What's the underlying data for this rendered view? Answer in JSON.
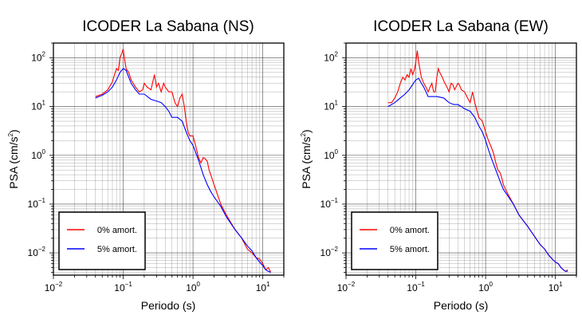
{
  "colors": {
    "undamped": "#ff0000",
    "damped": "#0000ff",
    "grid": "#000000",
    "frame": "#000000"
  },
  "chart_data": [
    {
      "type": "line",
      "title": "ICODER La Sabana (NS)",
      "xlabel": "Periodo (s)",
      "ylabel_main": "PSA (cm/s",
      "ylabel_sup": "2",
      "ylabel_tail": ")",
      "xscale": "log",
      "yscale": "log",
      "xlim": [
        0.01,
        20
      ],
      "ylim": [
        0.0035,
        200
      ],
      "grid": true,
      "legend_position": "bottom-left",
      "xticks": [
        {
          "v": 0.01,
          "base": "10",
          "exp": "−2"
        },
        {
          "v": 0.1,
          "base": "10",
          "exp": "−1"
        },
        {
          "v": 1,
          "base": "10",
          "exp": "0"
        },
        {
          "v": 10,
          "base": "10",
          "exp": "1"
        }
      ],
      "yticks": [
        {
          "v": 100,
          "base": "10",
          "exp": "2"
        },
        {
          "v": 10,
          "base": "10",
          "exp": "1"
        },
        {
          "v": 1,
          "base": "10",
          "exp": "0"
        },
        {
          "v": 0.1,
          "base": "10",
          "exp": "−1"
        },
        {
          "v": 0.01,
          "base": "10",
          "exp": "−2"
        }
      ],
      "series": [
        {
          "name": "0% amort.",
          "color": "#ff0000",
          "points": [
            [
              0.04,
              16
            ],
            [
              0.05,
              18
            ],
            [
              0.06,
              22
            ],
            [
              0.07,
              32
            ],
            [
              0.075,
              45
            ],
            [
              0.08,
              60
            ],
            [
              0.085,
              55
            ],
            [
              0.09,
              100
            ],
            [
              0.095,
              120
            ],
            [
              0.1,
              150
            ],
            [
              0.105,
              90
            ],
            [
              0.11,
              60
            ],
            [
              0.12,
              50
            ],
            [
              0.13,
              35
            ],
            [
              0.15,
              25
            ],
            [
              0.17,
              20
            ],
            [
              0.19,
              22
            ],
            [
              0.2,
              30
            ],
            [
              0.22,
              25
            ],
            [
              0.25,
              22
            ],
            [
              0.28,
              45
            ],
            [
              0.3,
              25
            ],
            [
              0.32,
              30
            ],
            [
              0.35,
              20
            ],
            [
              0.38,
              30
            ],
            [
              0.4,
              25
            ],
            [
              0.45,
              20
            ],
            [
              0.5,
              20
            ],
            [
              0.55,
              12
            ],
            [
              0.6,
              10
            ],
            [
              0.65,
              15
            ],
            [
              0.7,
              18
            ],
            [
              0.75,
              10
            ],
            [
              0.8,
              5
            ],
            [
              0.85,
              3
            ],
            [
              0.9,
              2.5
            ],
            [
              1,
              2.5
            ],
            [
              1.1,
              1.5
            ],
            [
              1.2,
              0.9
            ],
            [
              1.3,
              0.7
            ],
            [
              1.4,
              0.9
            ],
            [
              1.5,
              0.85
            ],
            [
              1.6,
              0.75
            ],
            [
              1.7,
              0.5
            ],
            [
              1.8,
              0.4
            ],
            [
              2,
              0.25
            ],
            [
              2.5,
              0.1
            ],
            [
              3,
              0.06
            ],
            [
              4,
              0.03
            ],
            [
              5,
              0.02
            ],
            [
              6,
              0.012
            ],
            [
              7,
              0.01
            ],
            [
              8,
              0.008
            ],
            [
              9,
              0.0075
            ],
            [
              10,
              0.006
            ],
            [
              11,
              0.0045
            ],
            [
              12,
              0.005
            ],
            [
              13,
              0.004
            ]
          ]
        },
        {
          "name": "5% amort.",
          "color": "#0000ff",
          "points": [
            [
              0.04,
              15
            ],
            [
              0.05,
              17
            ],
            [
              0.06,
              20
            ],
            [
              0.07,
              25
            ],
            [
              0.08,
              35
            ],
            [
              0.09,
              50
            ],
            [
              0.1,
              60
            ],
            [
              0.11,
              55
            ],
            [
              0.12,
              40
            ],
            [
              0.13,
              30
            ],
            [
              0.15,
              22
            ],
            [
              0.17,
              18
            ],
            [
              0.2,
              18
            ],
            [
              0.25,
              14
            ],
            [
              0.3,
              13
            ],
            [
              0.35,
              12
            ],
            [
              0.4,
              10
            ],
            [
              0.45,
              8
            ],
            [
              0.5,
              6
            ],
            [
              0.6,
              6
            ],
            [
              0.7,
              5
            ],
            [
              0.8,
              3
            ],
            [
              0.9,
              2
            ],
            [
              1,
              1.6
            ],
            [
              1.2,
              0.8
            ],
            [
              1.4,
              0.4
            ],
            [
              1.6,
              0.25
            ],
            [
              1.8,
              0.18
            ],
            [
              2,
              0.14
            ],
            [
              2.5,
              0.09
            ],
            [
              3,
              0.055
            ],
            [
              4,
              0.03
            ],
            [
              5,
              0.02
            ],
            [
              6,
              0.014
            ],
            [
              7,
              0.011
            ],
            [
              8,
              0.008
            ],
            [
              9,
              0.0065
            ],
            [
              10,
              0.0055
            ],
            [
              11,
              0.0045
            ],
            [
              12,
              0.0042
            ],
            [
              13,
              0.004
            ]
          ]
        }
      ]
    },
    {
      "type": "line",
      "title": "ICODER La Sabana (EW)",
      "xlabel": "Periodo (s)",
      "ylabel_main": "PSA (cm/s",
      "ylabel_sup": "2",
      "ylabel_tail": ")",
      "xscale": "log",
      "yscale": "log",
      "xlim": [
        0.01,
        20
      ],
      "ylim": [
        0.0035,
        200
      ],
      "grid": true,
      "legend_position": "bottom-left",
      "xticks": [
        {
          "v": 0.01,
          "base": "10",
          "exp": "−2"
        },
        {
          "v": 0.1,
          "base": "10",
          "exp": "−1"
        },
        {
          "v": 1,
          "base": "10",
          "exp": "0"
        },
        {
          "v": 10,
          "base": "10",
          "exp": "1"
        }
      ],
      "yticks": [
        {
          "v": 100,
          "base": "10",
          "exp": "2"
        },
        {
          "v": 10,
          "base": "10",
          "exp": "1"
        },
        {
          "v": 1,
          "base": "10",
          "exp": "0"
        },
        {
          "v": 0.1,
          "base": "10",
          "exp": "−1"
        },
        {
          "v": 0.01,
          "base": "10",
          "exp": "−2"
        }
      ],
      "series": [
        {
          "name": "0% amort.",
          "color": "#ff0000",
          "points": [
            [
              0.04,
              12
            ],
            [
              0.045,
              12
            ],
            [
              0.05,
              15
            ],
            [
              0.055,
              20
            ],
            [
              0.06,
              30
            ],
            [
              0.065,
              40
            ],
            [
              0.07,
              35
            ],
            [
              0.075,
              45
            ],
            [
              0.08,
              40
            ],
            [
              0.085,
              60
            ],
            [
              0.09,
              45
            ],
            [
              0.095,
              55
            ],
            [
              0.1,
              80
            ],
            [
              0.105,
              140
            ],
            [
              0.11,
              80
            ],
            [
              0.12,
              40
            ],
            [
              0.13,
              30
            ],
            [
              0.14,
              25
            ],
            [
              0.15,
              20
            ],
            [
              0.16,
              25
            ],
            [
              0.17,
              30
            ],
            [
              0.18,
              20
            ],
            [
              0.19,
              20
            ],
            [
              0.2,
              40
            ],
            [
              0.21,
              60
            ],
            [
              0.22,
              50
            ],
            [
              0.24,
              40
            ],
            [
              0.26,
              30
            ],
            [
              0.28,
              25
            ],
            [
              0.3,
              20
            ],
            [
              0.32,
              30
            ],
            [
              0.34,
              28
            ],
            [
              0.36,
              22
            ],
            [
              0.4,
              30
            ],
            [
              0.42,
              28
            ],
            [
              0.45,
              22
            ],
            [
              0.5,
              20
            ],
            [
              0.55,
              15
            ],
            [
              0.6,
              12
            ],
            [
              0.65,
              20
            ],
            [
              0.7,
              12
            ],
            [
              0.8,
              6
            ],
            [
              0.9,
              5
            ],
            [
              1,
              3
            ],
            [
              1.1,
              2
            ],
            [
              1.2,
              1.5
            ],
            [
              1.3,
              1.1
            ],
            [
              1.4,
              0.7
            ],
            [
              1.5,
              0.5
            ],
            [
              1.6,
              0.45
            ],
            [
              1.7,
              0.35
            ],
            [
              1.8,
              0.25
            ],
            [
              2,
              0.18
            ],
            [
              2.5,
              0.1
            ],
            [
              3,
              0.06
            ],
            [
              4,
              0.035
            ],
            [
              5,
              0.022
            ],
            [
              6,
              0.015
            ],
            [
              7,
              0.012
            ],
            [
              8,
              0.009
            ],
            [
              9,
              0.0075
            ],
            [
              10,
              0.0065
            ],
            [
              11,
              0.006
            ],
            [
              12,
              0.005
            ],
            [
              13,
              0.0045
            ],
            [
              14,
              0.0042
            ],
            [
              15,
              0.0045
            ]
          ]
        },
        {
          "name": "5% amort.",
          "color": "#0000ff",
          "points": [
            [
              0.04,
              10
            ],
            [
              0.05,
              12
            ],
            [
              0.06,
              15
            ],
            [
              0.07,
              18
            ],
            [
              0.08,
              22
            ],
            [
              0.09,
              28
            ],
            [
              0.1,
              35
            ],
            [
              0.11,
              38
            ],
            [
              0.12,
              30
            ],
            [
              0.13,
              25
            ],
            [
              0.14,
              20
            ],
            [
              0.15,
              16
            ],
            [
              0.2,
              16
            ],
            [
              0.25,
              15
            ],
            [
              0.3,
              12
            ],
            [
              0.35,
              11
            ],
            [
              0.4,
              11
            ],
            [
              0.45,
              10
            ],
            [
              0.5,
              9
            ],
            [
              0.6,
              8
            ],
            [
              0.7,
              6
            ],
            [
              0.8,
              4
            ],
            [
              0.9,
              3
            ],
            [
              1,
              2
            ],
            [
              1.1,
              1.3
            ],
            [
              1.2,
              0.9
            ],
            [
              1.4,
              0.5
            ],
            [
              1.6,
              0.3
            ],
            [
              1.8,
              0.2
            ],
            [
              2,
              0.16
            ],
            [
              2.5,
              0.1
            ],
            [
              3,
              0.06
            ],
            [
              4,
              0.035
            ],
            [
              5,
              0.022
            ],
            [
              6,
              0.015
            ],
            [
              7,
              0.012
            ],
            [
              8,
              0.009
            ],
            [
              9,
              0.0075
            ],
            [
              10,
              0.0065
            ],
            [
              11,
              0.006
            ],
            [
              12,
              0.005
            ],
            [
              13,
              0.0045
            ],
            [
              14,
              0.0042
            ],
            [
              15,
              0.0042
            ]
          ]
        }
      ]
    }
  ]
}
